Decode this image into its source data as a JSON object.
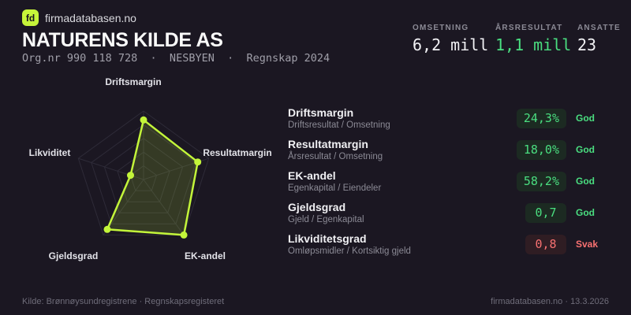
{
  "header": {
    "logo_text": "fd",
    "site_name": "firmadatabasen.no",
    "company_name": "NATURENS KILDE AS",
    "org_line": "Org.nr 990 118 728  ·  NESBYEN  ·  Regnskap 2024"
  },
  "stats": [
    {
      "label": "OMSETNING",
      "value": "6,2 mill",
      "tone": "neutral"
    },
    {
      "label": "ÅRSRESULTAT",
      "value": "1,1 mill",
      "tone": "green"
    },
    {
      "label": "ANSATTE",
      "value": "23",
      "tone": "neutral"
    }
  ],
  "chart_data": {
    "type": "radar",
    "title": "",
    "axes": [
      "Driftsmargin",
      "Resultatmargin",
      "EK-andel",
      "Gjeldsgrad",
      "Likviditet"
    ],
    "values_normalized": [
      0.87,
      0.83,
      1.0,
      0.9,
      0.2
    ],
    "value_range": [
      0,
      1
    ],
    "rings": 5,
    "grid": true,
    "accent_color": "#c3f53a",
    "grid_color": "#2e2b38",
    "fill_opacity": 0.16
  },
  "metrics": [
    {
      "name": "Driftsmargin",
      "formula": "Driftsresultat / Omsetning",
      "value": "24,3%",
      "status": "God",
      "tone": "good"
    },
    {
      "name": "Resultatmargin",
      "formula": "Årsresultat / Omsetning",
      "value": "18,0%",
      "status": "God",
      "tone": "good"
    },
    {
      "name": "EK-andel",
      "formula": "Egenkapital / Eiendeler",
      "value": "58,2%",
      "status": "God",
      "tone": "good"
    },
    {
      "name": "Gjeldsgrad",
      "formula": "Gjeld / Egenkapital",
      "value": "0,7",
      "status": "God",
      "tone": "good"
    },
    {
      "name": "Likviditetsgrad",
      "formula": "Omløpsmidler / Kortsiktig gjeld",
      "value": "0,8",
      "status": "Svak",
      "tone": "weak"
    }
  ],
  "footer": {
    "left": "Kilde: Brønnøysundregistrene · Regnskapsregisteret",
    "right": "firmadatabasen.no · 13.3.2026"
  }
}
